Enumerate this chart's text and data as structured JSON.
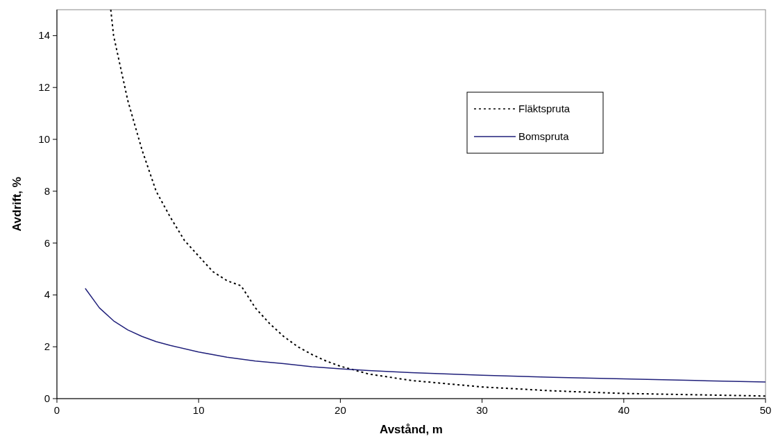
{
  "chart_data": {
    "type": "line",
    "xlabel": "Avstånd, m",
    "ylabel": "Avdrift, %",
    "xlim": [
      0,
      50
    ],
    "ylim": [
      0,
      15
    ],
    "xticks": [
      0,
      10,
      20,
      30,
      40,
      50
    ],
    "yticks": [
      0,
      2,
      4,
      6,
      8,
      10,
      12,
      14
    ],
    "grid": false,
    "legend": "top right",
    "marker": "none",
    "series": [
      {
        "name": "Fläktspruta",
        "color": "#000000",
        "line_style": "dotted",
        "x": [
          3.8,
          4,
          5,
          6,
          7,
          8,
          9,
          10,
          11,
          12,
          13,
          14,
          15,
          16,
          17,
          18,
          19,
          20,
          22,
          25,
          30,
          35,
          40,
          45,
          50
        ],
        "values": [
          15,
          14,
          11.5,
          9.6,
          8,
          7,
          6.1,
          5.5,
          4.9,
          4.55,
          4.35,
          3.5,
          2.9,
          2.4,
          2,
          1.7,
          1.45,
          1.25,
          0.95,
          0.7,
          0.45,
          0.3,
          0.2,
          0.15,
          0.1
        ]
      },
      {
        "name": "Bomspruta",
        "color": "#1f1f7a",
        "line_style": "solid",
        "x": [
          2,
          3,
          4,
          5,
          6,
          7,
          8,
          10,
          12,
          14,
          16,
          18,
          20,
          22,
          25,
          30,
          35,
          40,
          45,
          50
        ],
        "values": [
          4.25,
          3.5,
          3,
          2.65,
          2.4,
          2.2,
          2.05,
          1.8,
          1.6,
          1.45,
          1.35,
          1.23,
          1.15,
          1.08,
          1,
          0.9,
          0.82,
          0.76,
          0.7,
          0.64
        ]
      }
    ]
  }
}
